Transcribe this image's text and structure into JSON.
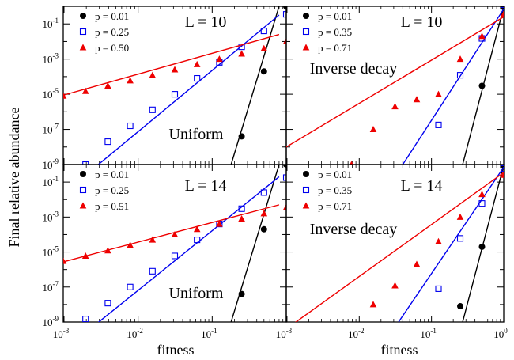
{
  "figure": {
    "ylabel": "Final relative abundance",
    "xlabel": "fitness",
    "colors": {
      "black": "#000000",
      "blue": "#0000ee",
      "red": "#ee0000"
    }
  },
  "chart_data": [
    {
      "type": "scatter",
      "title": "L = 10",
      "annotation": "Uniform",
      "xlabel": "",
      "ylabel": "",
      "xscale": "log",
      "yscale": "log",
      "xlim": [
        0.0009765625,
        1.0
      ],
      "ylim": [
        1e-09,
        1.0
      ],
      "yticks": [
        "10^-9",
        "10^-7",
        "10^-5",
        "10^-3",
        "10^-1"
      ],
      "legend_position": "top-left",
      "series": [
        {
          "name": "p = 0.01",
          "color": "#000000",
          "marker": "filled-circle",
          "x": [
            0.25,
            0.5,
            1.0
          ],
          "y": [
            4e-08,
            0.0002,
            1.0
          ],
          "fit": [
            [
              0.18,
              1e-09
            ],
            [
              0.8,
              1.0
            ]
          ]
        },
        {
          "name": "p = 0.25",
          "color": "#0000ee",
          "marker": "open-square",
          "x": [
            0.0019531,
            0.0039063,
            0.0078125,
            0.015625,
            0.03125,
            0.0625,
            0.125,
            0.25,
            0.5,
            1.0
          ],
          "y": [
            1e-09,
            2e-08,
            1.6e-07,
            1.3e-06,
            1e-05,
            8e-05,
            0.00065,
            0.005,
            0.04,
            0.35
          ],
          "fit": [
            [
              0.0015,
              1e-10
            ],
            [
              0.8,
              0.32
            ]
          ]
        },
        {
          "name": "p = 0.50",
          "color": "#ee0000",
          "marker": "filled-triangle",
          "x": [
            0.0009766,
            0.0019531,
            0.0039063,
            0.0078125,
            0.015625,
            0.03125,
            0.0625,
            0.125,
            0.25,
            0.5,
            1.0
          ],
          "y": [
            8e-06,
            1.5e-05,
            3e-05,
            6e-05,
            0.00012,
            0.00025,
            0.0005,
            0.001,
            0.002,
            0.004,
            0.01
          ],
          "fit": [
            [
              0.0009,
              8e-06
            ],
            [
              0.8,
              0.025
            ]
          ]
        }
      ]
    },
    {
      "type": "scatter",
      "title": "L = 10",
      "annotation": "Inverse decay",
      "xlabel": "",
      "ylabel": "",
      "xscale": "log",
      "yscale": "log",
      "xlim": [
        0.0009765625,
        1.0
      ],
      "ylim": [
        1e-09,
        1.0
      ],
      "legend_position": "top-left",
      "series": [
        {
          "name": "p = 0.01",
          "color": "#000000",
          "marker": "filled-circle",
          "x": [
            0.5,
            1.0
          ],
          "y": [
            3e-05,
            0.9
          ],
          "fit": [
            [
              0.27,
              1e-09
            ],
            [
              1.0,
              0.9
            ]
          ]
        },
        {
          "name": "p = 0.35",
          "color": "#0000ee",
          "marker": "open-square",
          "x": [
            0.125,
            0.25,
            0.5,
            1.0
          ],
          "y": [
            1.8e-07,
            0.00012,
            0.015,
            0.6
          ],
          "fit": [
            [
              0.04,
              1e-09
            ],
            [
              1.0,
              0.7
            ]
          ]
        },
        {
          "name": "p = 0.71",
          "color": "#ee0000",
          "marker": "filled-triangle",
          "x": [
            0.0078125,
            0.015625,
            0.03125,
            0.0625,
            0.125,
            0.25,
            0.5,
            1.0
          ],
          "y": [
            1e-09,
            1e-07,
            2e-06,
            5e-06,
            1e-05,
            0.001,
            0.02,
            0.35
          ],
          "fit": [
            [
              0.0009765625,
              1e-08
            ],
            [
              1.0,
              0.25
            ]
          ]
        }
      ]
    },
    {
      "type": "scatter",
      "title": "L = 14",
      "annotation": "Uniform",
      "xlabel": "fitness",
      "ylabel": "",
      "xscale": "log",
      "yscale": "log",
      "xlim": [
        0.0009765625,
        1.0
      ],
      "ylim": [
        1e-09,
        1.0
      ],
      "xticks": [
        "10^-3",
        "10^-2",
        "10^-1"
      ],
      "yticks": [
        "10^-9",
        "10^-7",
        "10^-5",
        "10^-3",
        "10^-1"
      ],
      "legend_position": "top-left",
      "series": [
        {
          "name": "p = 0.01",
          "color": "#000000",
          "marker": "filled-circle",
          "x": [
            0.25,
            0.5,
            1.0
          ],
          "y": [
            4e-08,
            0.0002,
            1.0
          ],
          "fit": [
            [
              0.18,
              1e-09
            ],
            [
              0.8,
              1.0
            ]
          ]
        },
        {
          "name": "p = 0.25",
          "color": "#0000ee",
          "marker": "open-square",
          "x": [
            0.0019531,
            0.0039063,
            0.0078125,
            0.015625,
            0.03125,
            0.0625,
            0.125,
            0.25,
            0.5,
            1.0
          ],
          "y": [
            1.5e-09,
            1.2e-08,
            1e-07,
            8e-07,
            6e-06,
            5e-05,
            0.0004,
            0.003,
            0.025,
            0.18
          ],
          "fit": [
            [
              0.0015,
              1e-10
            ],
            [
              0.8,
              0.2
            ]
          ]
        },
        {
          "name": "p = 0.51",
          "color": "#ee0000",
          "marker": "filled-triangle",
          "x": [
            0.0009766,
            0.0019531,
            0.0039063,
            0.0078125,
            0.015625,
            0.03125,
            0.0625,
            0.125,
            0.25,
            0.5,
            1.0
          ],
          "y": [
            3e-06,
            6e-06,
            1.2e-05,
            2.5e-05,
            5e-05,
            0.0001,
            0.0002,
            0.0004,
            0.0008,
            0.0016,
            0.0035
          ],
          "fit": [
            [
              0.0009,
              2.5e-06
            ],
            [
              0.8,
              0.005
            ]
          ]
        }
      ]
    },
    {
      "type": "scatter",
      "title": "L = 14",
      "annotation": "Inverse decay",
      "xlabel": "fitness",
      "ylabel": "",
      "xscale": "log",
      "yscale": "log",
      "xlim": [
        0.0009765625,
        1.0
      ],
      "ylim": [
        1e-09,
        1.0
      ],
      "xticks": [
        "10^-3",
        "10^-2",
        "10^-1",
        "10^0"
      ],
      "legend_position": "top-left",
      "series": [
        {
          "name": "p = 0.01",
          "color": "#000000",
          "marker": "filled-circle",
          "x": [
            0.25,
            0.5,
            1.0
          ],
          "y": [
            8e-09,
            2e-05,
            0.9
          ],
          "fit": [
            [
              0.27,
              1e-09
            ],
            [
              1.0,
              0.9
            ]
          ]
        },
        {
          "name": "p = 0.35",
          "color": "#0000ee",
          "marker": "open-square",
          "x": [
            0.125,
            0.25,
            0.5,
            1.0
          ],
          "y": [
            8e-08,
            6e-05,
            0.006,
            0.6
          ],
          "fit": [
            [
              0.035,
              1e-09
            ],
            [
              1.0,
              0.7
            ]
          ]
        },
        {
          "name": "p = 0.71",
          "color": "#ee0000",
          "marker": "filled-triangle",
          "x": [
            0.015625,
            0.03125,
            0.0625,
            0.125,
            0.25,
            0.5,
            1.0
          ],
          "y": [
            1e-08,
            1.2e-07,
            2e-06,
            4e-05,
            0.001,
            0.02,
            0.25
          ],
          "fit": [
            [
              0.0009765625,
              4e-10
            ],
            [
              1.0,
              0.35
            ]
          ]
        }
      ]
    }
  ]
}
